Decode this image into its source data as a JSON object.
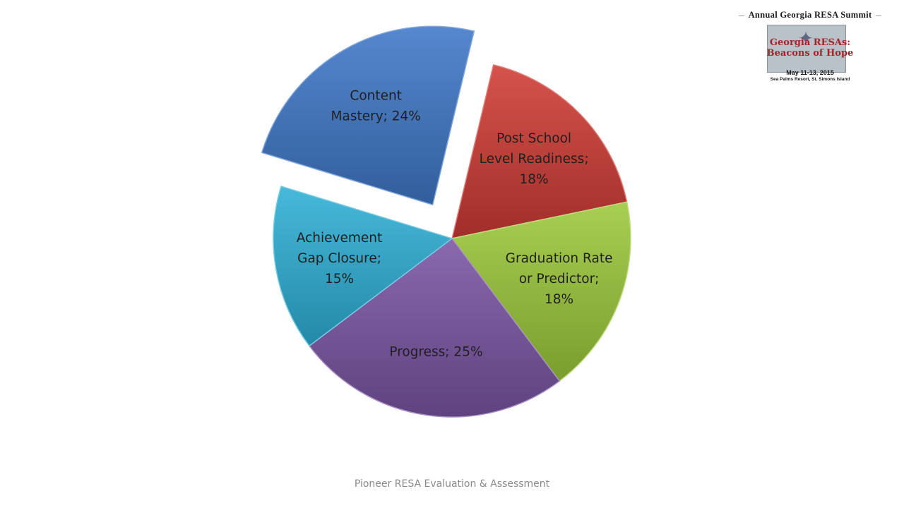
{
  "slide": {
    "footer": "Pioneer RESA Evaluation & Assessment"
  },
  "logo": {
    "title": "Annual Georgia RESA Summit",
    "tagline": "Georgia RESAs:\nBeacons of Hope",
    "dates": "May 11-13, 2015",
    "venue": "Sea Palms Resort, St. Simons Island",
    "star_icon": "compass-star-icon"
  },
  "chart_data": {
    "type": "pie",
    "style": "3d-exploded",
    "slices": [
      {
        "category": "Content Mastery",
        "value": 24,
        "label_lines": [
          "Content",
          "Mastery; 24%"
        ],
        "color": "#3f78c8",
        "exploded": true
      },
      {
        "category": "Post School Level Readiness",
        "value": 18,
        "label_lines": [
          "Post School",
          "Level Readiness;",
          "18%"
        ],
        "color": "#cf3b34",
        "exploded": false
      },
      {
        "category": "Graduation Rate or Predictor",
        "value": 18,
        "label_lines": [
          "Graduation Rate",
          "or Predictor;",
          "18%"
        ],
        "color": "#9cc93a",
        "exploded": false
      },
      {
        "category": "Progress",
        "value": 25,
        "label_lines": [
          "Progress; 25%"
        ],
        "color": "#7a55a3",
        "exploded": false
      },
      {
        "category": "Achievement Gap Closure",
        "value": 15,
        "label_lines": [
          "Achievement",
          "Gap Closure;",
          "15%"
        ],
        "color": "#2eb0d6",
        "exploded": false
      }
    ]
  }
}
